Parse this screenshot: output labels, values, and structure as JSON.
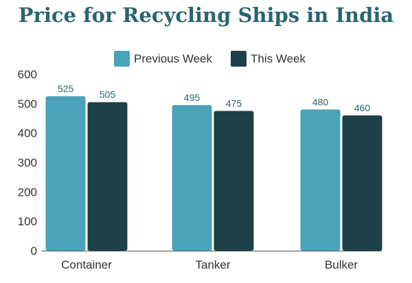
{
  "chart_data": {
    "type": "bar",
    "title": "Price for Recycling Ships in India",
    "categories": [
      "Container",
      "Tanker",
      "Bulker"
    ],
    "series": [
      {
        "name": "Previous Week",
        "color": "#4aa3b8",
        "values": [
          525,
          495,
          480
        ]
      },
      {
        "name": "This Week",
        "color": "#1e4048",
        "values": [
          505,
          475,
          460
        ]
      }
    ],
    "ylim": [
      0,
      600
    ],
    "yticks": [
      0,
      100,
      200,
      300,
      400,
      500,
      600
    ],
    "xlabel": "",
    "ylabel": "",
    "grid": false,
    "legend_position": "top-center",
    "data_labels": true
  }
}
